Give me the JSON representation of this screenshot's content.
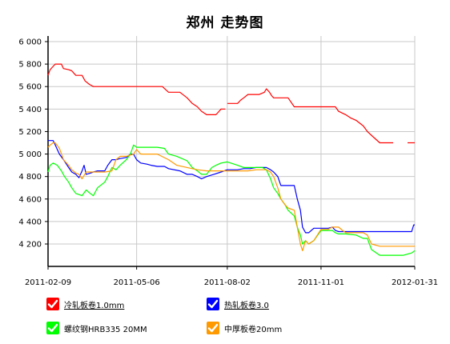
{
  "chart_data": {
    "type": "line",
    "title": "郑州 走势图",
    "xlabel": "",
    "ylabel": "",
    "x_range": [
      "2011-02-09",
      "2012-01-31"
    ],
    "x_ticks": [
      "2011-02-09",
      "2011-05-06",
      "2011-08-02",
      "2011-11-01",
      "2012-01-31"
    ],
    "ylim": [
      4050,
      6000
    ],
    "y_ticks": [
      "4 200",
      "4 400",
      "4 600",
      "4 800",
      "5 000",
      "5 200",
      "5 400",
      "5 600",
      "5 800",
      "6 000"
    ],
    "grid": true,
    "legend_position": "bottom",
    "series": [
      {
        "name": "冷轧板卷1.0mm",
        "color": "#ff0000",
        "underline": true,
        "points": [
          [
            "2011-02-09",
            5700
          ],
          [
            "2011-02-11",
            5750
          ],
          [
            "2011-02-14",
            5780
          ],
          [
            "2011-02-16",
            5800
          ],
          [
            "2011-02-22",
            5800
          ],
          [
            "2011-02-24",
            5760
          ],
          [
            "2011-03-01",
            5750
          ],
          [
            "2011-03-04",
            5740
          ],
          [
            "2011-03-08",
            5700
          ],
          [
            "2011-03-14",
            5700
          ],
          [
            "2011-03-17",
            5650
          ],
          [
            "2011-03-21",
            5620
          ],
          [
            "2011-03-25",
            5600
          ],
          [
            "2011-04-20",
            5600
          ],
          [
            "2011-05-31",
            5600
          ],
          [
            "2011-06-06",
            5550
          ],
          [
            "2011-06-17",
            5550
          ],
          [
            "2011-06-24",
            5500
          ],
          [
            "2011-06-29",
            5450
          ],
          [
            "2011-07-04",
            5420
          ],
          [
            "2011-07-08",
            5380
          ],
          [
            "2011-07-13",
            5350
          ],
          [
            "2011-07-22",
            5350
          ],
          [
            "2011-07-25",
            5380
          ],
          [
            "2011-07-27",
            5400
          ],
          [
            "2011-07-29",
            5400
          ],
          [
            "2011-07-31",
            5400
          ],
          null,
          [
            "2011-08-02",
            5450
          ],
          [
            "2011-08-12",
            5450
          ],
          [
            "2011-08-15",
            5480
          ],
          [
            "2011-08-18",
            5500
          ],
          [
            "2011-08-22",
            5530
          ],
          [
            "2011-09-02",
            5530
          ],
          [
            "2011-09-07",
            5550
          ],
          [
            "2011-09-09",
            5580
          ],
          [
            "2011-09-12",
            5550
          ],
          [
            "2011-09-14",
            5520
          ],
          [
            "2011-09-16",
            5500
          ],
          [
            "2011-09-20",
            5500
          ],
          [
            "2011-09-30",
            5500
          ],
          [
            "2011-10-06",
            5420
          ],
          [
            "2011-10-25",
            5420
          ],
          [
            "2011-11-01",
            5420
          ],
          [
            "2011-11-15",
            5420
          ],
          [
            "2011-11-18",
            5380
          ],
          [
            "2011-11-25",
            5350
          ],
          [
            "2011-11-30",
            5320
          ],
          [
            "2011-12-05",
            5300
          ],
          [
            "2011-12-12",
            5250
          ],
          [
            "2011-12-16",
            5200
          ],
          [
            "2011-12-22",
            5150
          ],
          [
            "2011-12-28",
            5100
          ],
          [
            "2012-01-10",
            5100
          ]
        ],
        "tail": [
          [
            "2012-01-24",
            5100
          ],
          [
            "2012-01-31",
            5100
          ]
        ]
      },
      {
        "name": "热轧板卷3.0",
        "color": "#0000ff",
        "underline": true,
        "points": [
          [
            "2011-02-09",
            5120
          ],
          [
            "2011-02-14",
            5120
          ],
          [
            "2011-02-16",
            5080
          ],
          [
            "2011-02-20",
            5000
          ],
          [
            "2011-02-24",
            4950
          ],
          [
            "2011-03-01",
            4880
          ],
          [
            "2011-03-04",
            4840
          ],
          [
            "2011-03-08",
            4820
          ],
          [
            "2011-03-11",
            4790
          ],
          [
            "2011-03-14",
            4850
          ],
          [
            "2011-03-16",
            4900
          ],
          [
            "2011-03-18",
            4820
          ],
          [
            "2011-03-22",
            4830
          ],
          [
            "2011-03-25",
            4840
          ],
          [
            "2011-03-29",
            4850
          ],
          [
            "2011-04-05",
            4850
          ],
          [
            "2011-04-08",
            4900
          ],
          [
            "2011-04-12",
            4950
          ],
          [
            "2011-04-16",
            4950
          ],
          [
            "2011-04-20",
            4960
          ],
          [
            "2011-04-26",
            4970
          ],
          [
            "2011-04-30",
            5000
          ],
          [
            "2011-05-03",
            5000
          ],
          [
            "2011-05-06",
            4950
          ],
          [
            "2011-05-10",
            4920
          ],
          [
            "2011-05-16",
            4910
          ],
          [
            "2011-05-20",
            4900
          ],
          [
            "2011-05-26",
            4890
          ],
          [
            "2011-06-02",
            4890
          ],
          [
            "2011-06-06",
            4870
          ],
          [
            "2011-06-17",
            4850
          ],
          [
            "2011-06-24",
            4820
          ],
          [
            "2011-06-29",
            4820
          ],
          [
            "2011-07-04",
            4800
          ],
          [
            "2011-07-08",
            4780
          ],
          [
            "2011-07-13",
            4800
          ],
          [
            "2011-07-20",
            4820
          ],
          [
            "2011-07-27",
            4840
          ],
          [
            "2011-08-02",
            4860
          ],
          [
            "2011-08-12",
            4860
          ],
          [
            "2011-08-18",
            4870
          ],
          [
            "2011-08-24",
            4870
          ],
          [
            "2011-08-30",
            4880
          ],
          [
            "2011-09-05",
            4880
          ],
          [
            "2011-09-09",
            4880
          ],
          [
            "2011-09-13",
            4860
          ],
          [
            "2011-09-16",
            4840
          ],
          [
            "2011-09-20",
            4800
          ],
          [
            "2011-09-23",
            4720
          ],
          [
            "2011-09-30",
            4720
          ],
          [
            "2011-10-06",
            4720
          ],
          [
            "2011-10-09",
            4600
          ],
          [
            "2011-10-12",
            4500
          ],
          [
            "2011-10-14",
            4350
          ],
          [
            "2011-10-17",
            4300
          ],
          [
            "2011-10-20",
            4300
          ],
          [
            "2011-10-25",
            4340
          ],
          [
            "2011-11-01",
            4340
          ],
          [
            "2011-11-08",
            4340
          ],
          [
            "2011-11-12",
            4350
          ],
          [
            "2011-11-15",
            4320
          ],
          [
            "2011-11-18",
            4310
          ],
          [
            "2011-11-25",
            4310
          ],
          [
            "2011-12-12",
            4310
          ],
          [
            "2011-12-28",
            4310
          ],
          [
            "2012-01-20",
            4310
          ],
          [
            "2012-01-28",
            4310
          ],
          [
            "2012-01-30",
            4370
          ],
          [
            "2012-01-31",
            4370
          ]
        ]
      },
      {
        "name": "螺纹钢HRB335 20MM",
        "color": "#00ff00",
        "underline": false,
        "points": [
          [
            "2011-02-09",
            4840
          ],
          [
            "2011-02-11",
            4900
          ],
          [
            "2011-02-14",
            4920
          ],
          [
            "2011-02-18",
            4900
          ],
          [
            "2011-02-22",
            4850
          ],
          [
            "2011-02-25",
            4800
          ],
          [
            "2011-03-01",
            4750
          ],
          [
            "2011-03-04",
            4700
          ],
          [
            "2011-03-08",
            4650
          ],
          [
            "2011-03-14",
            4630
          ],
          [
            "2011-03-18",
            4680
          ],
          [
            "2011-03-22",
            4650
          ],
          [
            "2011-03-25",
            4630
          ],
          [
            "2011-03-29",
            4700
          ],
          [
            "2011-04-05",
            4750
          ],
          [
            "2011-04-08",
            4800
          ],
          [
            "2011-04-12",
            4880
          ],
          [
            "2011-04-16",
            4860
          ],
          [
            "2011-04-20",
            4900
          ],
          [
            "2011-04-26",
            4950
          ],
          [
            "2011-04-30",
            5000
          ],
          [
            "2011-05-03",
            5080
          ],
          [
            "2011-05-06",
            5060
          ],
          [
            "2011-05-16",
            5060
          ],
          [
            "2011-05-26",
            5060
          ],
          [
            "2011-06-02",
            5050
          ],
          [
            "2011-06-06",
            5000
          ],
          [
            "2011-06-14",
            4980
          ],
          [
            "2011-06-24",
            4940
          ],
          [
            "2011-06-29",
            4880
          ],
          [
            "2011-07-04",
            4850
          ],
          [
            "2011-07-08",
            4820
          ],
          [
            "2011-07-13",
            4820
          ],
          [
            "2011-07-18",
            4880
          ],
          [
            "2011-07-22",
            4900
          ],
          [
            "2011-07-27",
            4920
          ],
          [
            "2011-08-02",
            4930
          ],
          [
            "2011-08-12",
            4900
          ],
          [
            "2011-08-18",
            4880
          ],
          [
            "2011-08-24",
            4880
          ],
          [
            "2011-08-30",
            4880
          ],
          [
            "2011-09-05",
            4880
          ],
          [
            "2011-09-09",
            4860
          ],
          [
            "2011-09-13",
            4780
          ],
          [
            "2011-09-16",
            4700
          ],
          [
            "2011-09-20",
            4650
          ],
          [
            "2011-09-23",
            4600
          ],
          [
            "2011-09-27",
            4550
          ],
          [
            "2011-09-30",
            4500
          ],
          [
            "2011-10-06",
            4450
          ],
          [
            "2011-10-09",
            4350
          ],
          [
            "2011-10-12",
            4280
          ],
          [
            "2011-10-14",
            4200
          ],
          [
            "2011-10-17",
            4230
          ],
          [
            "2011-10-20",
            4200
          ],
          [
            "2011-10-25",
            4230
          ],
          [
            "2011-11-01",
            4320
          ],
          [
            "2011-11-08",
            4320
          ],
          [
            "2011-11-12",
            4320
          ],
          [
            "2011-11-15",
            4300
          ],
          [
            "2011-11-18",
            4290
          ],
          [
            "2011-11-25",
            4290
          ],
          [
            "2011-12-05",
            4280
          ],
          [
            "2011-12-12",
            4250
          ],
          [
            "2011-12-16",
            4250
          ],
          [
            "2011-12-20",
            4150
          ],
          [
            "2011-12-28",
            4100
          ],
          [
            "2012-01-10",
            4100
          ],
          [
            "2012-01-20",
            4100
          ],
          [
            "2012-01-28",
            4120
          ],
          [
            "2012-01-31",
            4140
          ]
        ]
      },
      {
        "name": "中厚板卷20mm",
        "color": "#ff9900",
        "underline": false,
        "points": [
          [
            "2011-02-09",
            5060
          ],
          [
            "2011-02-11",
            5080
          ],
          [
            "2011-02-14",
            5100
          ],
          [
            "2011-02-16",
            5100
          ],
          [
            "2011-02-20",
            5050
          ],
          [
            "2011-02-24",
            4950
          ],
          [
            "2011-03-01",
            4900
          ],
          [
            "2011-03-04",
            4860
          ],
          [
            "2011-03-08",
            4830
          ],
          [
            "2011-03-11",
            4820
          ],
          [
            "2011-03-14",
            4780
          ],
          [
            "2011-03-18",
            4840
          ],
          [
            "2011-03-25",
            4840
          ],
          [
            "2011-04-05",
            4840
          ],
          [
            "2011-04-12",
            4850
          ],
          [
            "2011-04-16",
            4950
          ],
          [
            "2011-04-20",
            4980
          ],
          [
            "2011-04-26",
            4980
          ],
          [
            "2011-05-03",
            5000
          ],
          [
            "2011-05-06",
            5040
          ],
          [
            "2011-05-10",
            5000
          ],
          [
            "2011-05-16",
            5000
          ],
          [
            "2011-05-26",
            5000
          ],
          [
            "2011-06-06",
            4950
          ],
          [
            "2011-06-14",
            4900
          ],
          [
            "2011-06-24",
            4880
          ],
          [
            "2011-07-04",
            4860
          ],
          [
            "2011-07-13",
            4850
          ],
          [
            "2011-07-22",
            4850
          ],
          [
            "2011-08-02",
            4850
          ],
          [
            "2011-08-12",
            4850
          ],
          [
            "2011-08-22",
            4850
          ],
          [
            "2011-08-30",
            4860
          ],
          [
            "2011-09-05",
            4860
          ],
          [
            "2011-09-09",
            4860
          ],
          [
            "2011-09-13",
            4840
          ],
          [
            "2011-09-16",
            4800
          ],
          [
            "2011-09-20",
            4700
          ],
          [
            "2011-09-23",
            4600
          ],
          [
            "2011-09-27",
            4550
          ],
          [
            "2011-09-30",
            4520
          ],
          [
            "2011-10-06",
            4500
          ],
          [
            "2011-10-09",
            4350
          ],
          [
            "2011-10-12",
            4200
          ],
          [
            "2011-10-14",
            4140
          ],
          [
            "2011-10-17",
            4230
          ],
          [
            "2011-10-20",
            4200
          ],
          [
            "2011-10-25",
            4230
          ],
          [
            "2011-11-01",
            4330
          ],
          [
            "2011-11-08",
            4330
          ],
          [
            "2011-11-12",
            4350
          ],
          [
            "2011-11-18",
            4350
          ],
          [
            "2011-11-22",
            4320
          ],
          [
            "2011-11-25",
            4300
          ],
          [
            "2011-12-05",
            4300
          ],
          [
            "2011-12-12",
            4300
          ],
          [
            "2011-12-16",
            4280
          ],
          [
            "2011-12-20",
            4200
          ],
          [
            "2011-12-28",
            4180
          ],
          [
            "2012-01-10",
            4180
          ],
          [
            "2012-01-20",
            4180
          ],
          [
            "2012-01-31",
            4180
          ]
        ]
      }
    ]
  }
}
